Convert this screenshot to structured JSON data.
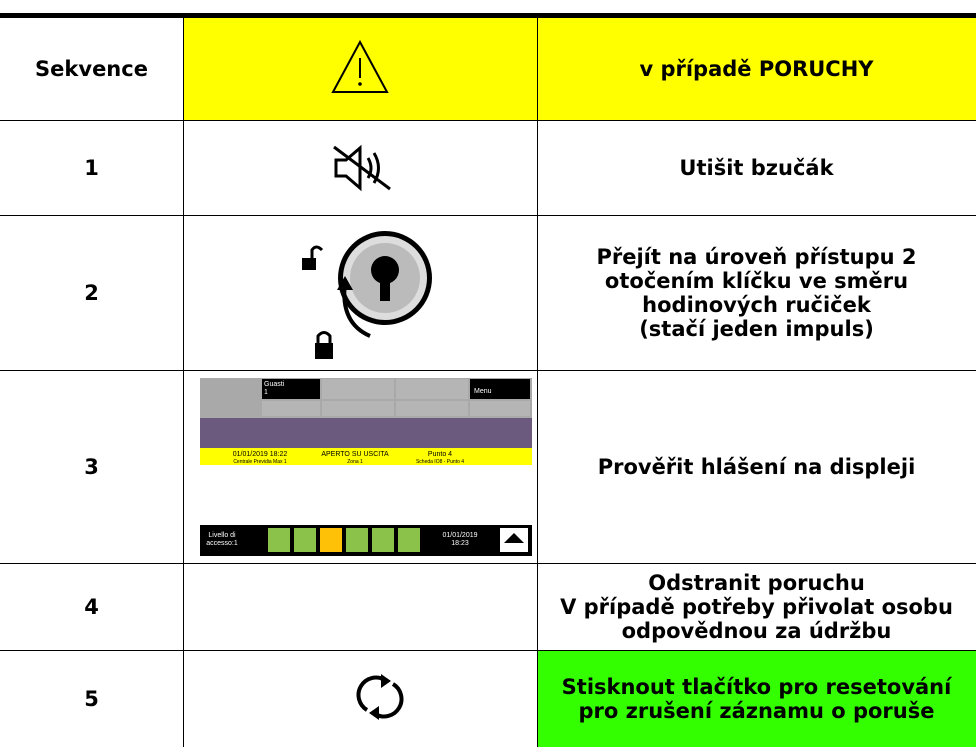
{
  "table": {
    "header": [
      "Sekvence",
      "v případě PORUCHY"
    ],
    "rows": [
      {
        "step": "1",
        "lines": [
          "Utišit bzučák"
        ]
      },
      {
        "step": "2",
        "lines": [
          "Přejít na úroveň přístupu 2",
          "otočením klíčku ve směru",
          "hodinových ručiček",
          "(stačí jeden impuls)"
        ]
      },
      {
        "step": "3",
        "lines": [
          "Prověřit hlášení na displeji"
        ]
      },
      {
        "step": "4",
        "lines": [
          "Odstranit poruchu",
          "V případě potřeby přivolat osobu",
          "odpovědnou za údržbu"
        ]
      },
      {
        "step": "5",
        "lines": [
          "Stisknout tlačítko pro resetování",
          "pro zrušení záznamu o poruše"
        ]
      }
    ]
  },
  "display": {
    "faults_label": "Guasti",
    "faults_count": "1",
    "menu": "Menu",
    "event": [
      "01/01/2019 18:22",
      "APERTO SU USCITA",
      "Punto 4"
    ],
    "event_detail": [
      "Centrale Previdia Max 1",
      "Zona 1",
      "Scheda IO8 - Punto 4"
    ],
    "access": [
      "Livello di",
      "accesso:1"
    ],
    "clock": [
      "01/01/2019",
      "18:23"
    ]
  }
}
